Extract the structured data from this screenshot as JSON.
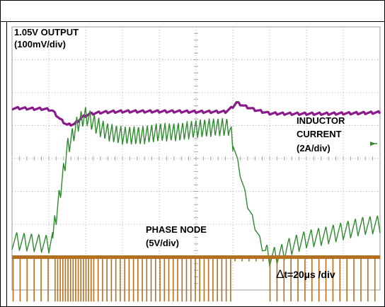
{
  "labels": {
    "vout": "1.05V OUTPUT",
    "vout_scale": "(100mV/div)",
    "inductor_line1": "INDUCTOR",
    "inductor_line2": "CURRENT",
    "inductor_scale": "(2A/div)",
    "phase": "PHASE NODE",
    "phase_scale": "(5V/div)",
    "delta_symbol": "Δ",
    "timebase": "t=20µs /div"
  },
  "chart_data": {
    "type": "line",
    "title": "",
    "xlabel": "",
    "ylabel": "",
    "grid": true,
    "legend": "none",
    "x_divisions": 10,
    "y_divisions": 8,
    "x_unit": "div",
    "series": [
      {
        "name": "1.05V OUTPUT",
        "color": "#8b1a8b",
        "scale": "100mV/div",
        "baseline_div": 5.5,
        "points": [
          [
            0,
            5.52
          ],
          [
            0.2,
            5.53
          ],
          [
            0.4,
            5.52
          ],
          [
            0.6,
            5.51
          ],
          [
            0.8,
            5.51
          ],
          [
            1.0,
            5.49
          ],
          [
            1.1,
            5.45
          ],
          [
            1.3,
            5.2
          ],
          [
            1.5,
            5.02
          ],
          [
            1.7,
            5.05
          ],
          [
            1.9,
            5.25
          ],
          [
            2.1,
            5.35
          ],
          [
            2.4,
            5.4
          ],
          [
            2.7,
            5.42
          ],
          [
            3.0,
            5.43
          ],
          [
            3.5,
            5.43
          ],
          [
            4.0,
            5.43
          ],
          [
            4.5,
            5.43
          ],
          [
            5.0,
            5.42
          ],
          [
            5.5,
            5.42
          ],
          [
            5.8,
            5.42
          ],
          [
            5.98,
            5.55
          ],
          [
            6.1,
            5.7
          ],
          [
            6.3,
            5.6
          ],
          [
            6.6,
            5.48
          ],
          [
            7.0,
            5.37
          ],
          [
            7.5,
            5.36
          ],
          [
            8.0,
            5.36
          ],
          [
            8.5,
            5.36
          ],
          [
            9.0,
            5.37
          ],
          [
            9.5,
            5.38
          ],
          [
            10.0,
            5.4
          ]
        ],
        "ripple_div": 0.07
      },
      {
        "name": "INDUCTOR CURRENT",
        "color": "#2e8b2e",
        "scale": "2A/div",
        "points": [
          [
            0,
            1.5
          ],
          [
            1.0,
            1.4
          ],
          [
            1.1,
            1.6
          ],
          [
            1.4,
            3.6
          ],
          [
            1.5,
            4.3
          ],
          [
            1.8,
            5.1
          ],
          [
            2.0,
            5.3
          ],
          [
            2.3,
            5.0
          ],
          [
            2.6,
            4.8
          ],
          [
            3.0,
            4.7
          ],
          [
            3.5,
            4.7
          ],
          [
            4.0,
            4.8
          ],
          [
            4.5,
            4.8
          ],
          [
            5.0,
            4.9
          ],
          [
            5.5,
            4.95
          ],
          [
            5.9,
            4.95
          ],
          [
            6.0,
            4.5
          ],
          [
            6.4,
            2.6
          ],
          [
            6.8,
            1.3
          ],
          [
            7.0,
            1.0
          ],
          [
            7.3,
            1.1
          ],
          [
            7.5,
            1.3
          ],
          [
            8.0,
            1.55
          ],
          [
            8.5,
            1.65
          ],
          [
            9.0,
            1.8
          ],
          [
            9.5,
            1.95
          ],
          [
            10.0,
            2.0
          ]
        ],
        "ripple_div": 0.55
      },
      {
        "name": "PHASE NODE",
        "color": "#b4701e",
        "scale": "5V/div",
        "high_div": 1.0,
        "low_div": -0.35,
        "switching": true
      }
    ]
  }
}
